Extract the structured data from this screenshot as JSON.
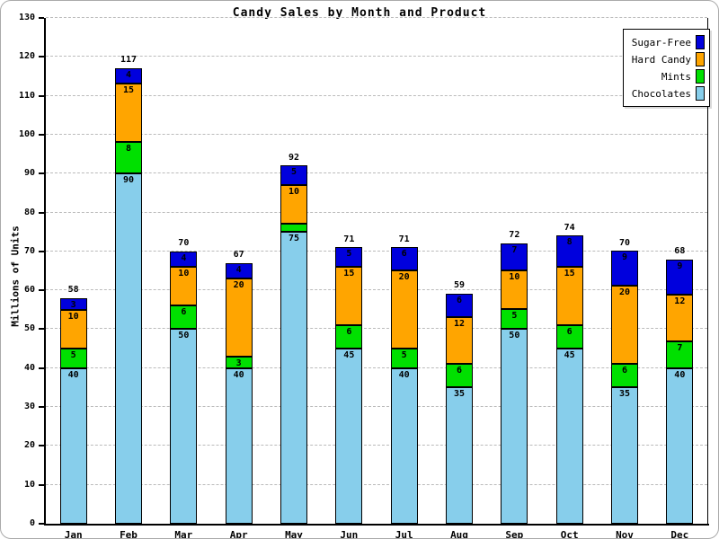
{
  "figure": {
    "title": "Candy Sales by Month and Product",
    "y_axis_label": "Millions of Units"
  },
  "legend": {
    "items": [
      {
        "label": "Sugar-Free",
        "color": "#0000dd"
      },
      {
        "label": "Hard Candy",
        "color": "#ffa500"
      },
      {
        "label": "Mints",
        "color": "#00e000"
      },
      {
        "label": "Chocolates",
        "color": "#87ceeb"
      }
    ]
  },
  "chart_data": {
    "type": "bar",
    "stacked": true,
    "title": "Candy Sales by Month and Product",
    "xlabel": "",
    "ylabel": "Millions of Units",
    "categories": [
      "Jan",
      "Feb",
      "Mar",
      "Apr",
      "May",
      "Jun",
      "Jul",
      "Aug",
      "Sep",
      "Oct",
      "Nov",
      "Dec"
    ],
    "series": [
      {
        "name": "Chocolates",
        "color": "#87ceeb",
        "values": [
          40,
          90,
          50,
          40,
          75,
          45,
          40,
          35,
          50,
          45,
          35,
          40
        ]
      },
      {
        "name": "Mints",
        "color": "#00e000",
        "values": [
          5,
          8,
          6,
          3,
          2,
          6,
          5,
          6,
          5,
          6,
          6,
          7
        ]
      },
      {
        "name": "Hard Candy",
        "color": "#ffa500",
        "values": [
          10,
          15,
          10,
          20,
          10,
          15,
          20,
          12,
          10,
          15,
          20,
          12
        ]
      },
      {
        "name": "Sugar-Free",
        "color": "#0000dd",
        "values": [
          3,
          4,
          4,
          4,
          5,
          5,
          6,
          6,
          7,
          8,
          9,
          9
        ]
      }
    ],
    "totals": [
      58,
      117,
      70,
      67,
      92,
      71,
      71,
      59,
      72,
      74,
      70,
      68
    ],
    "ylim": [
      0,
      130
    ],
    "ytick_interval": 10,
    "grid": true,
    "gridline_color": "#bbbbbb",
    "legend_position": "top-right",
    "segment_label_min_value": 3
  }
}
